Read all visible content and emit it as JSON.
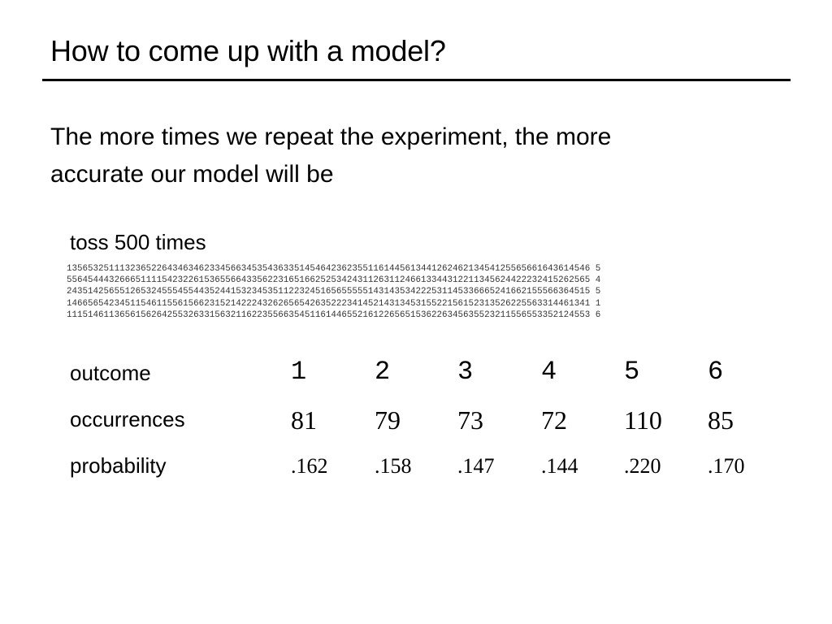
{
  "slide": {
    "title": "How to come up with a model?",
    "body_lines": [
      "The more times we repeat the experiment, the more",
      "accurate our model will be"
    ],
    "toss_label": "toss 500 times",
    "toss_sequence": [
      "135653251113236522643463462334566345354363351454642362355116144561344126246213454125565661643614546 5",
      "556454443266651111542322615365566433562231651662525342431126311246613344312211345624422232415262565 4",
      "243514256551265324555455443524415323453511223245165655555143143534222531145336665241662155566364515 5",
      "146656542345115461155615662315214222432626565426352223414521431345315522156152313526225563314461341 1",
      "111514611365615626425532633156321162235566354511614465521612265651536226345635523211556553352124553 6"
    ],
    "table": {
      "labels": {
        "outcome": "outcome",
        "occurrences": "occurrences",
        "probability": "probability"
      },
      "outcomes": [
        "1",
        "2",
        "3",
        "4",
        "5",
        "6"
      ],
      "occurrences": [
        "81",
        "79",
        "73",
        "72",
        "110",
        "85"
      ],
      "probabilities": [
        ".162",
        ".158",
        ".147",
        ".144",
        ".220",
        ".170"
      ]
    }
  }
}
